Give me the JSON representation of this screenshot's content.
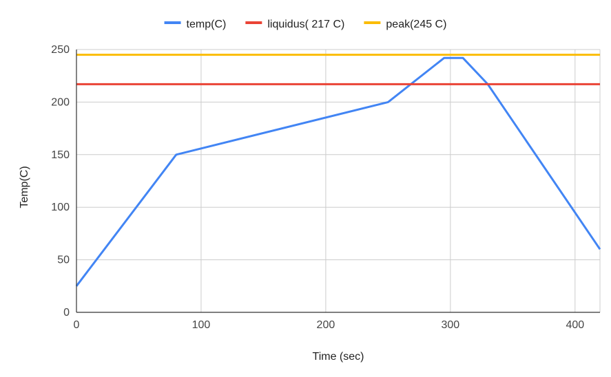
{
  "chart_data": {
    "type": "line",
    "title": "",
    "xlabel": "Time (sec)",
    "ylabel": "Temp(C)",
    "xlim": [
      0,
      420
    ],
    "ylim": [
      0,
      250
    ],
    "xticks": [
      0,
      100,
      200,
      300,
      400
    ],
    "yticks": [
      0,
      50,
      100,
      150,
      200,
      250
    ],
    "grid": true,
    "legend_position": "top-center",
    "series": [
      {
        "name": "temp(C)",
        "color": "#4285F4",
        "points": [
          {
            "x": 0,
            "y": 25
          },
          {
            "x": 80,
            "y": 150
          },
          {
            "x": 250,
            "y": 200
          },
          {
            "x": 295,
            "y": 242
          },
          {
            "x": 310,
            "y": 242
          },
          {
            "x": 330,
            "y": 217
          },
          {
            "x": 420,
            "y": 60
          }
        ]
      },
      {
        "name": "liquidus( 217 C)",
        "color": "#EA4335",
        "points": [
          {
            "x": 0,
            "y": 217
          },
          {
            "x": 420,
            "y": 217
          }
        ]
      },
      {
        "name": "peak(245 C)",
        "color": "#FBBC04",
        "points": [
          {
            "x": 0,
            "y": 245
          },
          {
            "x": 420,
            "y": 245
          }
        ]
      }
    ]
  }
}
